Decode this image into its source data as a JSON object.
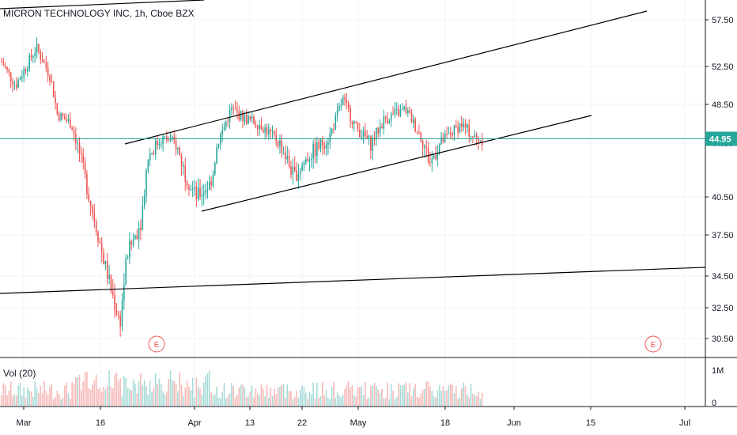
{
  "header": {
    "symbol": "MICRON TECHNOLOGY INC",
    "interval": "1h",
    "exchange": "Cboe BZX"
  },
  "volume": {
    "label": "Vol (20)"
  },
  "colors": {
    "up": "#26a69a",
    "down": "#ef5350",
    "last_price": "#26a69a",
    "trendline": "#000000",
    "grid": "#f0f3fa",
    "event": "#ef5350"
  },
  "chart_data": {
    "type": "candlestick",
    "y_ticks": [
      "57.50",
      "52.50",
      "48.50",
      "44.50",
      "40.50",
      "37.50",
      "34.50",
      "32.50",
      "30.50"
    ],
    "y_tick_values": [
      57.5,
      52.5,
      48.5,
      44.5,
      40.5,
      37.5,
      34.5,
      32.5,
      30.5
    ],
    "x_ticks": [
      "Mar",
      "16",
      "Apr",
      "13",
      "22",
      "May",
      "18",
      "Jun",
      "15",
      "Jul"
    ],
    "last_price": "44.95",
    "volume_ticks": [
      "1M",
      "0"
    ],
    "event_markers": [
      "E",
      "E"
    ],
    "price_path": [
      {
        "t": 0.0,
        "p": 53.0
      },
      {
        "t": 0.02,
        "p": 50.5
      },
      {
        "t": 0.05,
        "p": 54.5
      },
      {
        "t": 0.07,
        "p": 51.5
      },
      {
        "t": 0.08,
        "p": 47.5
      },
      {
        "t": 0.1,
        "p": 46.5
      },
      {
        "t": 0.115,
        "p": 43.0
      },
      {
        "t": 0.13,
        "p": 39.5
      },
      {
        "t": 0.145,
        "p": 36.0
      },
      {
        "t": 0.155,
        "p": 34.0
      },
      {
        "t": 0.17,
        "p": 31.5
      },
      {
        "t": 0.18,
        "p": 36.0
      },
      {
        "t": 0.2,
        "p": 38.5
      },
      {
        "t": 0.21,
        "p": 43.5
      },
      {
        "t": 0.23,
        "p": 45.0
      },
      {
        "t": 0.25,
        "p": 44.5
      },
      {
        "t": 0.265,
        "p": 42.0
      },
      {
        "t": 0.28,
        "p": 40.5
      },
      {
        "t": 0.3,
        "p": 41.5
      },
      {
        "t": 0.31,
        "p": 44.5
      },
      {
        "t": 0.33,
        "p": 48.0
      },
      {
        "t": 0.35,
        "p": 47.0
      },
      {
        "t": 0.37,
        "p": 46.5
      },
      {
        "t": 0.4,
        "p": 44.5
      },
      {
        "t": 0.42,
        "p": 42.0
      },
      {
        "t": 0.44,
        "p": 43.5
      },
      {
        "t": 0.47,
        "p": 45.0
      },
      {
        "t": 0.49,
        "p": 49.0
      },
      {
        "t": 0.51,
        "p": 46.0
      },
      {
        "t": 0.53,
        "p": 44.5
      },
      {
        "t": 0.55,
        "p": 47.0
      },
      {
        "t": 0.58,
        "p": 48.0
      },
      {
        "t": 0.6,
        "p": 45.5
      },
      {
        "t": 0.615,
        "p": 43.0
      },
      {
        "t": 0.63,
        "p": 44.5
      },
      {
        "t": 0.66,
        "p": 46.5
      },
      {
        "t": 0.68,
        "p": 45.0
      },
      {
        "t": 0.69,
        "p": 44.9
      }
    ]
  }
}
